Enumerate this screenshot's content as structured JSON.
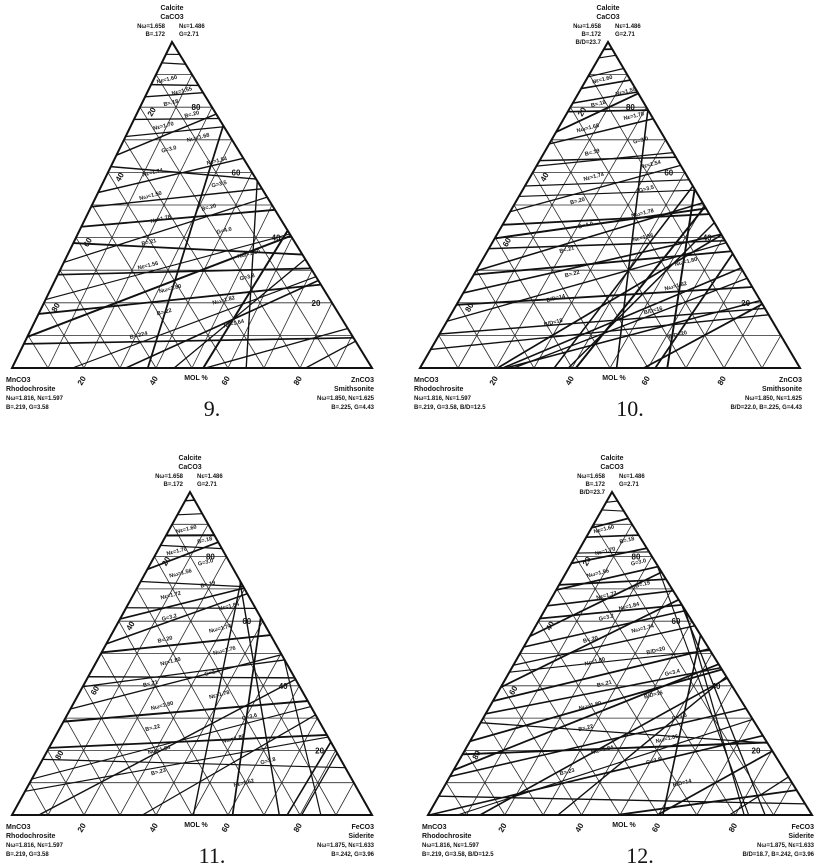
{
  "diagrams": [
    {
      "figure_number": "9.",
      "top": {
        "name": "Calcite",
        "formula": "CaCO3",
        "left_props": [
          "Nω=1.658",
          "B=.172"
        ],
        "right_props": [
          "Nε=1.486",
          "G=2.71"
        ]
      },
      "bottom_left": {
        "formula": "MnCO3",
        "name": "Rhodochrosite",
        "props": [
          "Nω=1.816, Nε=1.597",
          "B=.219, G=3.58"
        ]
      },
      "bottom_right": {
        "formula": "ZnCO3",
        "name": "Smithsonite",
        "props": [
          "Nω=1.850, Nε=1.625",
          "B=.225, G=4.43"
        ]
      },
      "axis_label": "MOL %",
      "bottom_ticks": [
        "20",
        "40",
        "60",
        "80"
      ],
      "right_ticks": [
        "20",
        "40",
        "60",
        "80"
      ],
      "left_ticks": [
        "20",
        "40",
        "60",
        "80"
      ],
      "inline_labels": [
        "Nε=1.60",
        "Nε=1.55",
        "B=.18",
        "B=.20",
        "Nε=1.70",
        "Nω=1.68",
        "G=3.0",
        "Nε=1.54",
        "Nε=1.74",
        "G=3.5",
        "Nω=1.50",
        "B=.20",
        "Nε=1.78",
        "G=4.0",
        "B=.21",
        "Nω=1.80",
        "Nε=1.56",
        "G=3.8",
        "Nω=1.80",
        "Nω=1.82",
        "B=.22",
        "Nε=1.64",
        "B=.224"
      ]
    },
    {
      "figure_number": "10.",
      "top": {
        "name": "Calcite",
        "formula": "CaCO3",
        "left_props": [
          "Nω=1.658",
          "B=.172",
          "B/D=23.7"
        ],
        "right_props": [
          "Nε=1.486",
          "G=2.71"
        ]
      },
      "bottom_left": {
        "formula": "MnCO3",
        "name": "Rhodochrosite",
        "props": [
          "Nω=1.816, Nε=1.597",
          "B=.219, G=3.58, B/D=12.5"
        ]
      },
      "bottom_right": {
        "formula": "ZnCO3",
        "name": "Smithsonite",
        "props": [
          "Nω=1.850, Nε=1.625",
          "B/D=22.0, B=.225, G=4.43"
        ]
      },
      "axis_label": "MOL %",
      "bottom_ticks": [
        "20",
        "40",
        "60",
        "80"
      ],
      "right_ticks": [
        "20",
        "40",
        "60",
        "80"
      ],
      "left_ticks": [
        "20",
        "40",
        "60",
        "80"
      ],
      "inline_labels": [
        "Nε=1.60",
        "Nε=1.55",
        "B=.18",
        "Nε=1.70",
        "Nω=1.68",
        "G=3.0",
        "B=.19",
        "Nε=1.54",
        "Nε=1.74",
        "G=3.5",
        "B=.20",
        "Nω=1.78",
        "G=4.0",
        "Nε=1.56",
        "B=.21",
        "Nω=1.80",
        "B=.22",
        "Nω=1.82",
        "B/D=14",
        "B/D=16",
        "B/D=18",
        "B/D=20"
      ]
    },
    {
      "figure_number": "11.",
      "top": {
        "name": "Calcite",
        "formula": "CaCO3",
        "left_props": [
          "Nω=1.658",
          "B=.172"
        ],
        "right_props": [
          "Nε=1.486",
          "G=2.71"
        ]
      },
      "bottom_left": {
        "formula": "MnCO3",
        "name": "Rhodochrosite",
        "props": [
          "Nω=1.816, Nε=1.597",
          "B=.219, G=3.58"
        ]
      },
      "bottom_right": {
        "formula": "FeCO3",
        "name": "Siderite",
        "props": [
          "Nω=1.875, Nε=1.633",
          "B=.242, G=3.96"
        ]
      },
      "axis_label": "MOL %",
      "bottom_ticks": [
        "20",
        "40",
        "60",
        "80"
      ],
      "right_ticks": [
        "20",
        "40",
        "60",
        "80"
      ],
      "left_ticks": [
        "20",
        "40",
        "60",
        "80"
      ],
      "inline_labels": [
        "Nε=1.60",
        "B=.18",
        "Nε=1.70",
        "G=3.0",
        "Nω=1.56",
        "B=.19",
        "Nε=1.72",
        "Nε=1.84",
        "G=3.2",
        "Nω=1.74",
        "B=.20",
        "Nω=1.76",
        "Nε=1.80",
        "G=3.4",
        "B=.21",
        "Nε=1.78",
        "Nω=1.80",
        "G=3.6",
        "B=.22",
        "Nω=1.86",
        "Nω=1.84",
        "G=3.8",
        "B=.23",
        "Nε=1.62"
      ]
    },
    {
      "figure_number": "12.",
      "top": {
        "name": "Calcite",
        "formula": "CaCO3",
        "left_props": [
          "Nω=1.658",
          "B=.172",
          "B/D=23.7"
        ],
        "right_props": [
          "Nε=1.486",
          "G=2.71"
        ]
      },
      "bottom_left": {
        "formula": "MnCO3",
        "name": "Rhodochrosite",
        "props": [
          "Nω=1.816, Nε=1.597",
          "B=.219, G=3.58, B/D=12.5"
        ]
      },
      "bottom_right": {
        "formula": "FeCO3",
        "name": "Siderite",
        "props": [
          "Nω=1.875, Nε=1.633",
          "B/D=18.7, B=.242, G=3.96"
        ]
      },
      "axis_label": "MOL %",
      "bottom_ticks": [
        "20",
        "40",
        "60",
        "80"
      ],
      "right_ticks": [
        "20",
        "40",
        "60",
        "80"
      ],
      "left_ticks": [
        "20",
        "40",
        "60",
        "80"
      ],
      "inline_labels": [
        "Nε=1.60",
        "B=.18",
        "Nε=1.70",
        "G=3.0",
        "Nω=1.56",
        "B=.19",
        "Nε=1.72",
        "Nε=1.84",
        "G=3.2",
        "Nω=1.74",
        "B=.20",
        "B/D=20",
        "Nε=1.80",
        "G=3.4",
        "B=.21",
        "B/D=16",
        "Nω=1.80",
        "G=3.6",
        "B=.22",
        "Nω=1.86",
        "Nω=1.84",
        "G=3.8",
        "B=.23",
        "B/D=14"
      ]
    }
  ]
}
